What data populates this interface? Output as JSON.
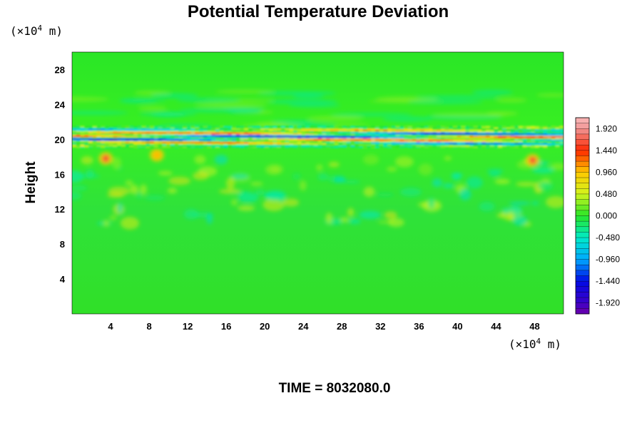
{
  "chart_data": {
    "type": "heatmap",
    "title": "Potential Temperature Deviation",
    "ylabel": "Height",
    "x_unit": {
      "prefix": "(×10",
      "exp": "4",
      "suffix": " m)"
    },
    "y_unit": {
      "prefix": "(×10",
      "exp": "4",
      "suffix": " m)"
    },
    "xlim": [
      0,
      51
    ],
    "ylim": [
      0,
      30
    ],
    "x_ticks": [
      4,
      8,
      12,
      16,
      20,
      24,
      28,
      32,
      36,
      40,
      44,
      48
    ],
    "y_ticks": [
      4,
      8,
      12,
      16,
      20,
      24,
      28
    ],
    "colorbar": {
      "range": [
        -2.16,
        2.16
      ],
      "levels": [
        "1.920",
        "1.440",
        "0.960",
        "0.480",
        "0.000",
        "-0.480",
        "-0.960",
        "-1.440",
        "-1.920"
      ],
      "placement": "right"
    },
    "field_summary": [
      {
        "feature": "strong alternating positive/negative band",
        "height_range": [
          19,
          21.5
        ],
        "value_range": [
          -2.0,
          2.0
        ]
      },
      {
        "feature": "weak positive blobs (convective region)",
        "height_range": [
          10,
          18
        ],
        "value_range": [
          0.2,
          1.0
        ]
      },
      {
        "feature": "local maxima near x=3.5 and x=48",
        "height": 18,
        "value": 1.5
      },
      {
        "feature": "near-zero background",
        "height_range": [
          0,
          30
        ],
        "value": 0.0
      }
    ]
  },
  "footer": {
    "time_label": "TIME = 8032080.0"
  }
}
